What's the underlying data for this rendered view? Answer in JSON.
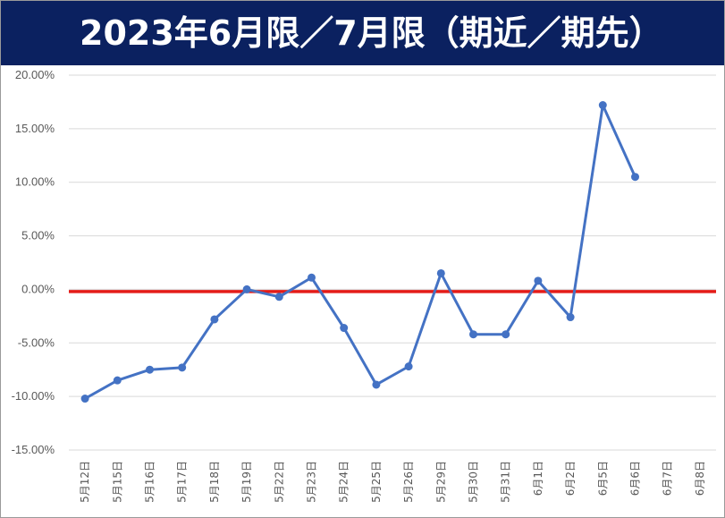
{
  "title": "2023年6月限／7月限（期近／期先）",
  "chart_data": {
    "type": "line",
    "title": "2023年6月限／7月限（期近／期先）",
    "xlabel": "",
    "ylabel": "",
    "ylim": [
      -15,
      20
    ],
    "y_ticks": [
      "20.00%",
      "15.00%",
      "10.00%",
      "5.00%",
      "0.00%",
      "-5.00%",
      "-10.00%",
      "-15.00%"
    ],
    "y_tick_values": [
      20,
      15,
      10,
      5,
      0,
      -5,
      -10,
      -15
    ],
    "categories": [
      "5月12日",
      "5月15日",
      "5月16日",
      "5月17日",
      "5月18日",
      "5月19日",
      "5月22日",
      "5月23日",
      "5月24日",
      "5月25日",
      "5月26日",
      "5月29日",
      "5月30日",
      "5月31日",
      "6月1日",
      "6月2日",
      "6月5日",
      "6月6日",
      "6月7日",
      "6月8日"
    ],
    "series": [
      {
        "values": [
          -10.2,
          -8.5,
          -7.5,
          -7.3,
          -2.8,
          0.0,
          -0.7,
          1.1,
          -3.6,
          -8.9,
          -7.2,
          1.5,
          -4.2,
          -4.2,
          0.8,
          -2.6,
          17.2,
          10.5,
          null,
          null
        ],
        "color": "#4472c4",
        "marker": "circle"
      }
    ],
    "reference_line": {
      "value": -0.2,
      "color": "#e41b17"
    },
    "grid": true,
    "gridline_color": "#d9d9d9"
  }
}
